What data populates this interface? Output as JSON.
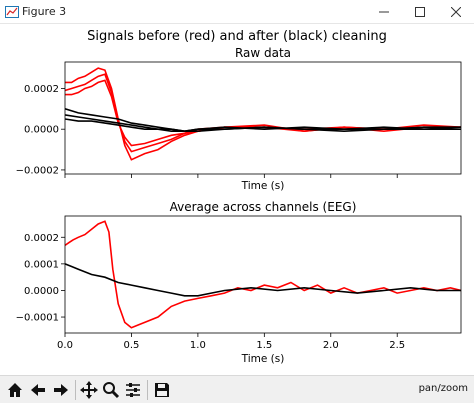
{
  "window": {
    "title": "Figure 3"
  },
  "figure": {
    "suptitle": "Signals before (red) and after (black) cleaning",
    "colors": {
      "before": "#ff0000",
      "after": "#000000"
    }
  },
  "toolbar": {
    "buttons": [
      "home-icon",
      "back-arrow-icon",
      "forward-arrow-icon",
      "pan-icon",
      "zoom-icon",
      "configure-subplots-icon",
      "save-icon"
    ],
    "mode": "pan/zoom"
  },
  "chart_data": [
    {
      "type": "line",
      "title": "Raw data",
      "xlabel": "Time (s)",
      "ylabel": "",
      "xlim": [
        0.0,
        2.98
      ],
      "ylim": [
        -0.00022,
        0.00033
      ],
      "yticks": [
        -0.0002,
        0.0,
        0.0002
      ],
      "ytick_labels": [
        "−0.0002",
        "0.0000",
        "0.0002"
      ],
      "xticks": [
        0.0,
        0.5,
        1.0,
        1.5,
        2.0,
        2.5
      ],
      "xtick_labels": [
        "",
        "",
        "",
        "",
        "",
        ""
      ],
      "series": [
        {
          "color": "#ff0000",
          "x": [
            0,
            0.05,
            0.1,
            0.15,
            0.2,
            0.25,
            0.3,
            0.35,
            0.4,
            0.45,
            0.5,
            0.6,
            0.7,
            0.8,
            0.9,
            1.0,
            1.2,
            1.5,
            1.8,
            2.1,
            2.4,
            2.7,
            2.98
          ],
          "y": [
            0.00023,
            0.00023,
            0.00025,
            0.00026,
            0.00028,
            0.0003,
            0.00029,
            0.0002,
            5e-05,
            -8e-05,
            -0.00015,
            -0.00012,
            -0.0001,
            -6e-05,
            -3e-05,
            -1e-05,
            1e-05,
            2e-05,
            -1e-05,
            1e-05,
            0.0,
            2e-05,
            1e-05
          ]
        },
        {
          "color": "#ff0000",
          "x": [
            0,
            0.05,
            0.1,
            0.15,
            0.2,
            0.25,
            0.3,
            0.35,
            0.4,
            0.45,
            0.5,
            0.6,
            0.7,
            0.8,
            0.9,
            1.0,
            1.2,
            1.5,
            1.8,
            2.1,
            2.4,
            2.7,
            2.98
          ],
          "y": [
            0.00019,
            0.0002,
            0.00021,
            0.00022,
            0.00024,
            0.00026,
            0.00027,
            0.00018,
            4e-05,
            -6e-05,
            -0.00011,
            -9e-05,
            -7e-05,
            -5e-05,
            -2e-05,
            -1e-05,
            1e-05,
            1e-05,
            -1e-05,
            1e-05,
            0.0,
            1e-05,
            1e-05
          ]
        },
        {
          "color": "#ff0000",
          "x": [
            0,
            0.05,
            0.1,
            0.15,
            0.2,
            0.25,
            0.3,
            0.35,
            0.4,
            0.45,
            0.5,
            0.6,
            0.7,
            0.8,
            0.9,
            1.0,
            1.2,
            1.5,
            1.8,
            2.1,
            2.4,
            2.7,
            2.98
          ],
          "y": [
            0.00017,
            0.00017,
            0.00018,
            0.0002,
            0.00021,
            0.00023,
            0.00024,
            0.00016,
            3e-05,
            -4e-05,
            -8e-05,
            -7e-05,
            -5e-05,
            -3e-05,
            -2e-05,
            0.0,
            1e-05,
            1e-05,
            0.0,
            1e-05,
            -1e-05,
            1e-05,
            1e-05
          ]
        },
        {
          "color": "#000000",
          "x": [
            0,
            0.1,
            0.2,
            0.3,
            0.4,
            0.5,
            0.6,
            0.7,
            0.8,
            0.9,
            1.0,
            1.2,
            1.5,
            1.8,
            2.1,
            2.4,
            2.7,
            2.98
          ],
          "y": [
            0.0001,
            8e-05,
            7e-05,
            6e-05,
            5e-05,
            3e-05,
            2e-05,
            1e-05,
            0.0,
            -1e-05,
            -1e-05,
            0.0,
            1e-05,
            0.0,
            0.0,
            1e-05,
            0.0,
            1e-05
          ]
        },
        {
          "color": "#000000",
          "x": [
            0,
            0.1,
            0.2,
            0.3,
            0.4,
            0.5,
            0.6,
            0.7,
            0.8,
            0.9,
            1.0,
            1.2,
            1.5,
            1.8,
            2.1,
            2.4,
            2.7,
            2.98
          ],
          "y": [
            7e-05,
            6e-05,
            5e-05,
            4e-05,
            3e-05,
            2e-05,
            1e-05,
            0.0,
            0.0,
            -1e-05,
            0.0,
            0.0,
            1e-05,
            0.0,
            -1e-05,
            0.0,
            0.0,
            0.0
          ]
        },
        {
          "color": "#000000",
          "x": [
            0,
            0.1,
            0.2,
            0.3,
            0.4,
            0.5,
            0.6,
            0.7,
            0.8,
            0.9,
            1.0,
            1.2,
            1.5,
            1.8,
            2.1,
            2.4,
            2.7,
            2.98
          ],
          "y": [
            5e-05,
            4e-05,
            4e-05,
            3e-05,
            2e-05,
            1e-05,
            0.0,
            0.0,
            -1e-05,
            -1e-05,
            0.0,
            1e-05,
            0.0,
            1e-05,
            0.0,
            0.0,
            1e-05,
            1e-05
          ]
        }
      ]
    },
    {
      "type": "line",
      "title": "Average across channels (EEG)",
      "xlabel": "Time (s)",
      "ylabel": "",
      "xlim": [
        0.0,
        2.98
      ],
      "ylim": [
        -0.00016,
        0.00028
      ],
      "yticks": [
        -0.0001,
        0.0,
        0.0001,
        0.0002
      ],
      "ytick_labels": [
        "−0.0001",
        "0.0000",
        "0.0001",
        "0.0002"
      ],
      "xticks": [
        0.0,
        0.5,
        1.0,
        1.5,
        2.0,
        2.5
      ],
      "xtick_labels": [
        "0.0",
        "0.5",
        "1.0",
        "1.5",
        "2.0",
        "2.5"
      ],
      "series": [
        {
          "color": "#ff0000",
          "x": [
            0,
            0.03,
            0.06,
            0.1,
            0.15,
            0.2,
            0.25,
            0.3,
            0.33,
            0.36,
            0.4,
            0.45,
            0.5,
            0.55,
            0.6,
            0.7,
            0.8,
            0.9,
            1.0,
            1.1,
            1.2,
            1.3,
            1.4,
            1.5,
            1.6,
            1.7,
            1.8,
            1.9,
            2.0,
            2.1,
            2.2,
            2.3,
            2.4,
            2.5,
            2.6,
            2.7,
            2.8,
            2.9,
            2.98
          ],
          "y": [
            0.00017,
            0.00018,
            0.00019,
            0.0002,
            0.00021,
            0.00023,
            0.00025,
            0.00026,
            0.00022,
            8e-05,
            -5e-05,
            -0.00012,
            -0.00014,
            -0.00013,
            -0.00012,
            -0.0001,
            -6e-05,
            -4e-05,
            -3e-05,
            -2e-05,
            -1e-05,
            1e-05,
            0.0,
            2e-05,
            1e-05,
            3e-05,
            0.0,
            2e-05,
            -1e-05,
            1e-05,
            -1e-05,
            0.0,
            1e-05,
            -1e-05,
            0.0,
            1e-05,
            0.0,
            1e-05,
            0.0
          ]
        },
        {
          "color": "#000000",
          "x": [
            0,
            0.05,
            0.1,
            0.2,
            0.3,
            0.4,
            0.5,
            0.6,
            0.7,
            0.8,
            0.9,
            1.0,
            1.1,
            1.2,
            1.4,
            1.6,
            1.8,
            2.0,
            2.2,
            2.4,
            2.6,
            2.8,
            2.98
          ],
          "y": [
            0.0001,
            9e-05,
            8e-05,
            6e-05,
            5e-05,
            3e-05,
            2e-05,
            1e-05,
            0.0,
            -1e-05,
            -2e-05,
            -2e-05,
            -1e-05,
            0.0,
            1e-05,
            0.0,
            1e-05,
            0.0,
            -1e-05,
            0.0,
            1e-05,
            0.0,
            0.0
          ]
        }
      ]
    }
  ]
}
